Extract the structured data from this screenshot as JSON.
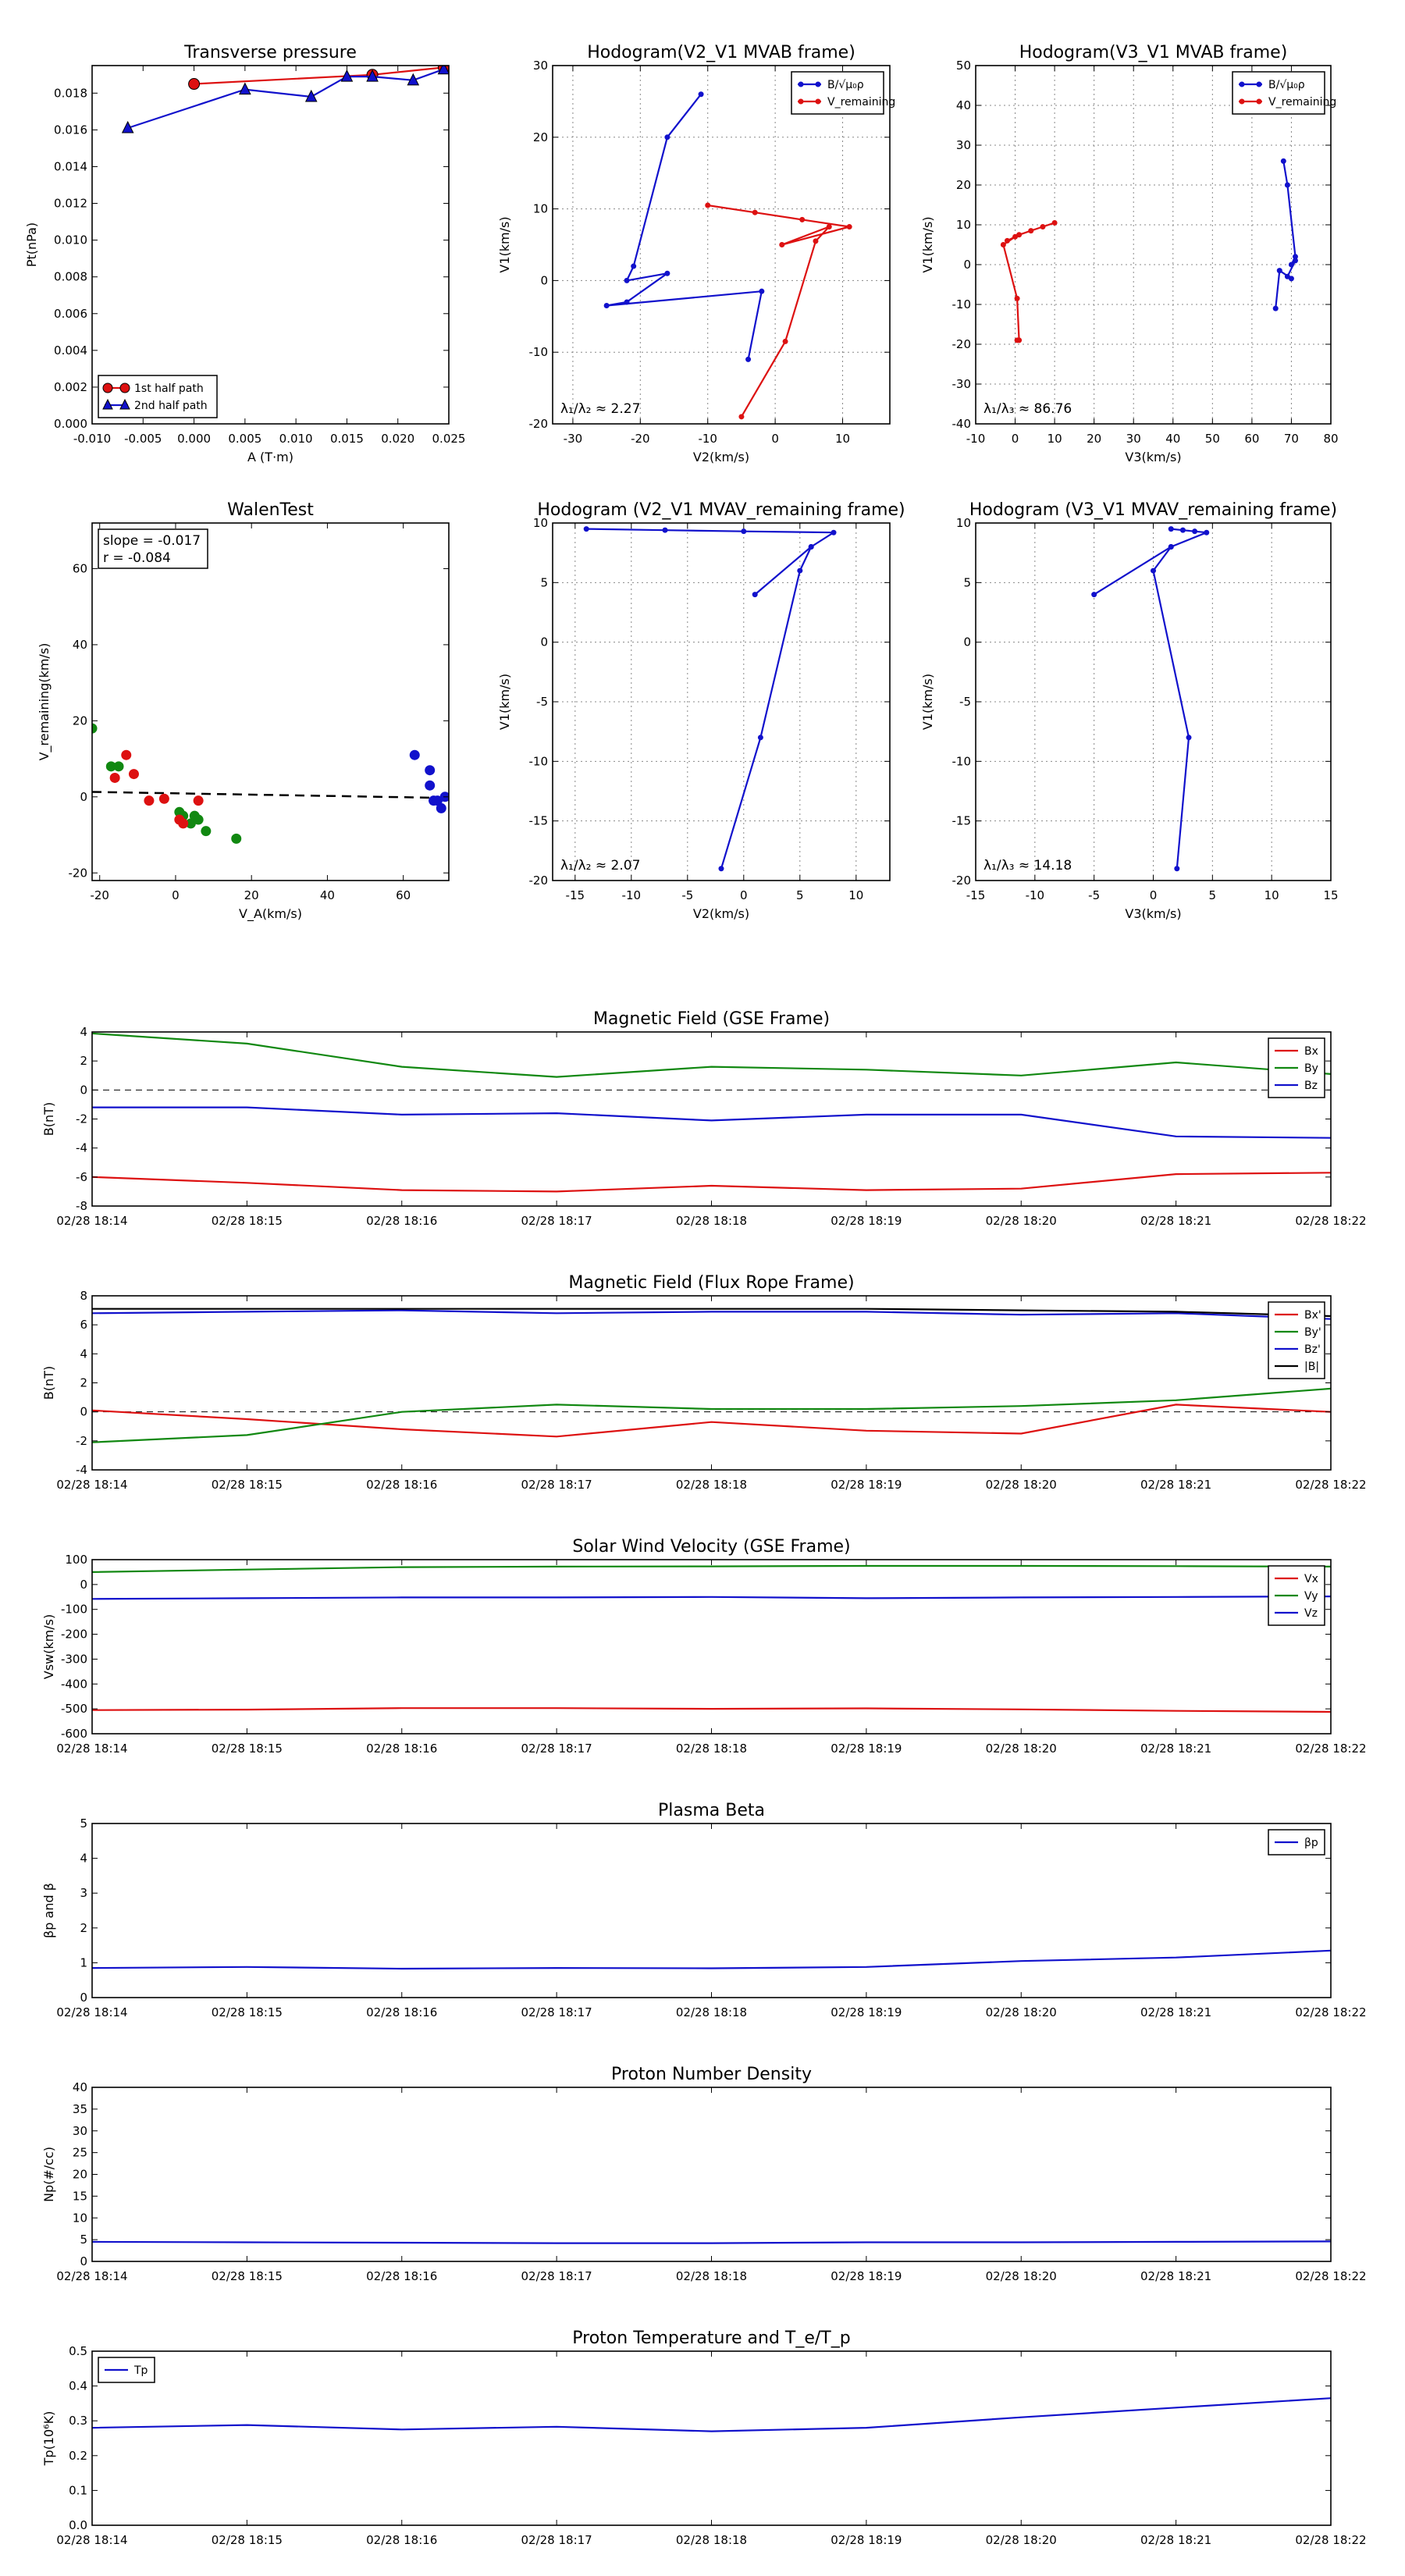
{
  "figure": {
    "background": "#ffffff",
    "colors": {
      "red": "#dd1111",
      "green": "#118811",
      "blue": "#1111cc",
      "black": "#000000"
    }
  },
  "chart_data": [
    {
      "type": "scatter",
      "title": "Transverse pressure",
      "xlabel": "A (T·m)",
      "ylabel": "Pt(nPa)",
      "xlim": [
        -0.01,
        0.025
      ],
      "ylim": [
        0.0,
        0.0195
      ],
      "xticks": [
        "-0.010",
        "-0.005",
        "0.000",
        "0.005",
        "0.010",
        "0.015",
        "0.020",
        "0.025"
      ],
      "yticks": [
        "0.000",
        "0.002",
        "0.004",
        "0.006",
        "0.008",
        "0.010",
        "0.012",
        "0.014",
        "0.016",
        "0.018"
      ],
      "legend": [
        "1st half path",
        "2nd half path"
      ],
      "legend_placement": "lower-left",
      "grid": false,
      "series": [
        {
          "name": "1st half path",
          "color": "#dd1111",
          "marker": "circle",
          "x": [
            0.0,
            0.0175,
            0.0245
          ],
          "y": [
            0.0185,
            0.019,
            0.0194
          ]
        },
        {
          "name": "2nd half path",
          "color": "#1111cc",
          "marker": "triangle",
          "x": [
            -0.0065,
            0.005,
            0.0115,
            0.015,
            0.0175,
            0.0215,
            0.0245
          ],
          "y": [
            0.0161,
            0.0182,
            0.0178,
            0.0189,
            0.0189,
            0.0187,
            0.0193
          ]
        }
      ]
    },
    {
      "type": "line",
      "title": "Hodogram(V2_V1 MVAB frame)",
      "xlabel": "V2(km/s)",
      "ylabel": "V1(km/s)",
      "xlim": [
        -33,
        17
      ],
      "ylim": [
        -20,
        30
      ],
      "xticks": [
        "-30",
        "-20",
        "-10",
        "0",
        "10"
      ],
      "yticks": [
        "-20",
        "-10",
        "0",
        "10",
        "20",
        "30"
      ],
      "grid": true,
      "legend": [
        "B/√μ₀ρ",
        "V_remaining"
      ],
      "legend_placement": "top-right",
      "annotation": "λ₁/λ₂ ≈ 2.27",
      "series": [
        {
          "name": "B/√μ₀ρ",
          "color": "#1111cc",
          "x": [
            -11,
            -16,
            -21,
            -22,
            -16,
            -22,
            -25,
            -2,
            -4
          ],
          "y": [
            26,
            20,
            2,
            0,
            1,
            -3,
            -3.5,
            -1.5,
            -11
          ]
        },
        {
          "name": "V_remaining",
          "color": "#dd1111",
          "x": [
            -10,
            -3,
            4,
            11,
            1,
            8,
            6,
            1.5,
            -5
          ],
          "y": [
            10.5,
            9.5,
            8.5,
            7.5,
            5,
            7.5,
            5.5,
            -8.5,
            -19
          ]
        }
      ]
    },
    {
      "type": "line",
      "title": "Hodogram(V3_V1 MVAB frame)",
      "xlabel": "V3(km/s)",
      "ylabel": "V1(km/s)",
      "xlim": [
        -10,
        80
      ],
      "ylim": [
        -40,
        50
      ],
      "xticks": [
        "-10",
        "0",
        "10",
        "20",
        "30",
        "40",
        "50",
        "60",
        "70",
        "80"
      ],
      "yticks": [
        "-40",
        "-30",
        "-20",
        "-10",
        "0",
        "10",
        "20",
        "30",
        "40",
        "50"
      ],
      "grid": true,
      "legend": [
        "B/√μ₀ρ",
        "V_remaining"
      ],
      "legend_placement": "top-right",
      "annotation": "λ₁/λ₃ ≈ 86.76",
      "series": [
        {
          "name": "B/√μ₀ρ",
          "color": "#1111cc",
          "x": [
            68,
            69,
            71,
            70,
            71,
            69,
            70,
            67,
            66
          ],
          "y": [
            26,
            20,
            2,
            0,
            1,
            -3,
            -3.5,
            -1.5,
            -11
          ]
        },
        {
          "name": "V_remaining",
          "color": "#dd1111",
          "x": [
            10,
            7,
            4,
            1,
            -2,
            0,
            -3,
            0.5,
            1,
            0.5
          ],
          "y": [
            10.5,
            9.5,
            8.5,
            7.5,
            6,
            7,
            5,
            -8.5,
            -19,
            -19
          ]
        }
      ]
    },
    {
      "type": "scatter",
      "title": "WalenTest",
      "xlabel": "V_A(km/s)",
      "ylabel": "V_remaining(km/s)",
      "xlim": [
        -22,
        72
      ],
      "ylim": [
        -22,
        72
      ],
      "xticks": [
        "-20",
        "0",
        "20",
        "40",
        "60"
      ],
      "yticks": [
        "-20",
        "0",
        "20",
        "40",
        "60"
      ],
      "grid": false,
      "annotation_lines": [
        "slope = -0.017",
        "r = -0.084"
      ],
      "fit_line": {
        "x": [
          -22,
          72
        ],
        "y": [
          1.3,
          -0.3
        ],
        "style": "dashed",
        "color": "#000000"
      },
      "series": [
        {
          "color": "#118811",
          "x": [
            -22,
            -17,
            -15,
            1,
            2,
            4,
            5,
            6,
            8,
            16
          ],
          "y": [
            18,
            8,
            8,
            -4,
            -5,
            -7,
            -5,
            -6,
            -9,
            -11
          ]
        },
        {
          "color": "#dd1111",
          "x": [
            -16,
            -13,
            -11,
            -7,
            -3,
            1,
            2,
            6
          ],
          "y": [
            5,
            11,
            6,
            -1,
            -0.5,
            -6,
            -7,
            -1
          ]
        },
        {
          "color": "#1111cc",
          "x": [
            63,
            67,
            67,
            68,
            69,
            70,
            71
          ],
          "y": [
            11,
            7,
            3,
            -1,
            -1,
            -3,
            0
          ]
        }
      ]
    },
    {
      "type": "line",
      "title": "Hodogram (V2_V1 MVAV_remaining frame)",
      "xlabel": "V2(km/s)",
      "ylabel": "V1(km/s)",
      "xlim": [
        -17,
        13
      ],
      "ylim": [
        -20,
        10
      ],
      "xticks": [
        "-15",
        "-10",
        "-5",
        "0",
        "5",
        "10"
      ],
      "yticks": [
        "-20",
        "-15",
        "-10",
        "-5",
        "0",
        "5",
        "10"
      ],
      "grid": true,
      "annotation": "λ₁/λ₂ ≈ 2.07",
      "series": [
        {
          "color": "#1111cc",
          "x": [
            -14,
            -7,
            0,
            8,
            6,
            1,
            6,
            5,
            1.5,
            -2
          ],
          "y": [
            9.5,
            9.4,
            9.3,
            9.2,
            8,
            4,
            8,
            6,
            -8,
            -19
          ]
        }
      ]
    },
    {
      "type": "line",
      "title": "Hodogram (V3_V1 MVAV_remaining frame)",
      "xlabel": "V3(km/s)",
      "ylabel": "V1(km/s)",
      "xlim": [
        -15,
        15
      ],
      "ylim": [
        -20,
        10
      ],
      "xticks": [
        "-15",
        "-10",
        "-5",
        "0",
        "5",
        "10",
        "15"
      ],
      "yticks": [
        "-20",
        "-15",
        "-10",
        "-5",
        "0",
        "5",
        "10"
      ],
      "grid": true,
      "annotation": "λ₁/λ₃ ≈ 14.18",
      "series": [
        {
          "color": "#1111cc",
          "x": [
            1.5,
            2.5,
            3.5,
            4.5,
            1.5,
            -5,
            1.5,
            0,
            3,
            2
          ],
          "y": [
            9.5,
            9.4,
            9.3,
            9.2,
            8,
            4,
            8,
            6,
            -8,
            -19
          ]
        }
      ]
    },
    {
      "type": "line",
      "title": "Magnetic Field (GSE Frame)",
      "ylabel": "B(nT)",
      "categories": [
        "02/28 18:14",
        "02/28 18:15",
        "02/28 18:16",
        "02/28 18:17",
        "02/28 18:18",
        "02/28 18:19",
        "02/28 18:20",
        "02/28 18:21",
        "02/28 18:22"
      ],
      "ylim": [
        -8,
        4
      ],
      "yticks": [
        "-8",
        "-6",
        "-4",
        "-2",
        "0",
        "2",
        "4"
      ],
      "zero_line": true,
      "legend": [
        "Bx",
        "By",
        "Bz"
      ],
      "legend_placement": "top-right",
      "series": [
        {
          "name": "Bx",
          "color": "#dd1111",
          "values": [
            -6.0,
            -6.4,
            -6.9,
            -7.0,
            -6.6,
            -6.9,
            -6.8,
            -5.8,
            -5.7
          ]
        },
        {
          "name": "By",
          "color": "#118811",
          "values": [
            3.9,
            3.2,
            1.6,
            0.9,
            1.6,
            1.4,
            1.0,
            1.9,
            1.1
          ]
        },
        {
          "name": "Bz",
          "color": "#1111cc",
          "values": [
            -1.2,
            -1.2,
            -1.7,
            -1.6,
            -2.1,
            -1.7,
            -1.7,
            -3.2,
            -3.3
          ]
        }
      ]
    },
    {
      "type": "line",
      "title": "Magnetic Field (Flux Rope Frame)",
      "ylabel": "B(nT)",
      "categories": [
        "02/28 18:14",
        "02/28 18:15",
        "02/28 18:16",
        "02/28 18:17",
        "02/28 18:18",
        "02/28 18:19",
        "02/28 18:20",
        "02/28 18:21",
        "02/28 18:22"
      ],
      "ylim": [
        -4,
        8
      ],
      "yticks": [
        "-4",
        "-2",
        "0",
        "2",
        "4",
        "6",
        "8"
      ],
      "zero_line": true,
      "legend": [
        "Bx'",
        "By'",
        "Bz'",
        "|B|"
      ],
      "legend_placement": "top-right",
      "series": [
        {
          "name": "Bx'",
          "color": "#dd1111",
          "values": [
            0.1,
            -0.5,
            -1.2,
            -1.7,
            -0.7,
            -1.3,
            -1.5,
            0.5,
            0.0
          ]
        },
        {
          "name": "By'",
          "color": "#118811",
          "values": [
            -2.1,
            -1.6,
            0.0,
            0.5,
            0.2,
            0.2,
            0.4,
            0.8,
            1.6
          ]
        },
        {
          "name": "Bz'",
          "color": "#1111cc",
          "values": [
            6.8,
            6.9,
            7.0,
            6.8,
            6.9,
            6.9,
            6.7,
            6.8,
            6.4
          ]
        },
        {
          "name": "|B|",
          "color": "#000000",
          "values": [
            7.1,
            7.1,
            7.1,
            7.1,
            7.1,
            7.1,
            7.0,
            6.9,
            6.6
          ]
        }
      ]
    },
    {
      "type": "line",
      "title": "Solar Wind Velocity (GSE Frame)",
      "ylabel": "Vsw(km/s)",
      "categories": [
        "02/28 18:14",
        "02/28 18:15",
        "02/28 18:16",
        "02/28 18:17",
        "02/28 18:18",
        "02/28 18:19",
        "02/28 18:20",
        "02/28 18:21",
        "02/28 18:22"
      ],
      "ylim": [
        -600,
        100
      ],
      "yticks": [
        "-600",
        "-500",
        "-400",
        "-300",
        "-200",
        "-100",
        "0",
        "100"
      ],
      "legend": [
        "Vx",
        "Vy",
        "Vz"
      ],
      "legend_placement": "top-right",
      "series": [
        {
          "name": "Vx",
          "color": "#dd1111",
          "values": [
            -505,
            -503,
            -497,
            -497,
            -500,
            -498,
            -502,
            -508,
            -512
          ]
        },
        {
          "name": "Vy",
          "color": "#118811",
          "values": [
            50,
            60,
            70,
            72,
            73,
            75,
            75,
            74,
            72
          ]
        },
        {
          "name": "Vz",
          "color": "#1111cc",
          "values": [
            -58,
            -55,
            -52,
            -52,
            -50,
            -55,
            -52,
            -50,
            -48
          ]
        }
      ]
    },
    {
      "type": "line",
      "title": "Plasma Beta",
      "ylabel": "βp and β",
      "categories": [
        "02/28 18:14",
        "02/28 18:15",
        "02/28 18:16",
        "02/28 18:17",
        "02/28 18:18",
        "02/28 18:19",
        "02/28 18:20",
        "02/28 18:21",
        "02/28 18:22"
      ],
      "ylim": [
        0,
        5
      ],
      "yticks": [
        "0",
        "1",
        "2",
        "3",
        "4",
        "5"
      ],
      "legend": [
        "βp"
      ],
      "legend_placement": "top-right",
      "series": [
        {
          "name": "βp",
          "color": "#1111cc",
          "values": [
            0.85,
            0.88,
            0.83,
            0.85,
            0.84,
            0.88,
            1.05,
            1.15,
            1.35
          ]
        }
      ]
    },
    {
      "type": "line",
      "title": "Proton Number Density",
      "ylabel": "Np(#/cc)",
      "categories": [
        "02/28 18:14",
        "02/28 18:15",
        "02/28 18:16",
        "02/28 18:17",
        "02/28 18:18",
        "02/28 18:19",
        "02/28 18:20",
        "02/28 18:21",
        "02/28 18:22"
      ],
      "ylim": [
        0,
        40
      ],
      "yticks": [
        "0",
        "5",
        "10",
        "15",
        "20",
        "25",
        "30",
        "35",
        "40"
      ],
      "series": [
        {
          "color": "#1111cc",
          "values": [
            4.5,
            4.4,
            4.3,
            4.2,
            4.2,
            4.4,
            4.4,
            4.5,
            4.6
          ]
        }
      ]
    },
    {
      "type": "line",
      "title": "Proton Temperature and T_e/T_p",
      "ylabel": "Tp(10⁶K)",
      "categories": [
        "02/28 18:14",
        "02/28 18:15",
        "02/28 18:16",
        "02/28 18:17",
        "02/28 18:18",
        "02/28 18:19",
        "02/28 18:20",
        "02/28 18:21",
        "02/28 18:22"
      ],
      "ylim": [
        0,
        0.5
      ],
      "yticks": [
        "0.0",
        "0.1",
        "0.2",
        "0.3",
        "0.4",
        "0.5"
      ],
      "legend": [
        "Tp"
      ],
      "legend_placement": "top-left",
      "series": [
        {
          "name": "Tp",
          "color": "#1111cc",
          "values": [
            0.28,
            0.288,
            0.275,
            0.283,
            0.27,
            0.28,
            0.31,
            0.338,
            0.365
          ]
        }
      ]
    }
  ]
}
